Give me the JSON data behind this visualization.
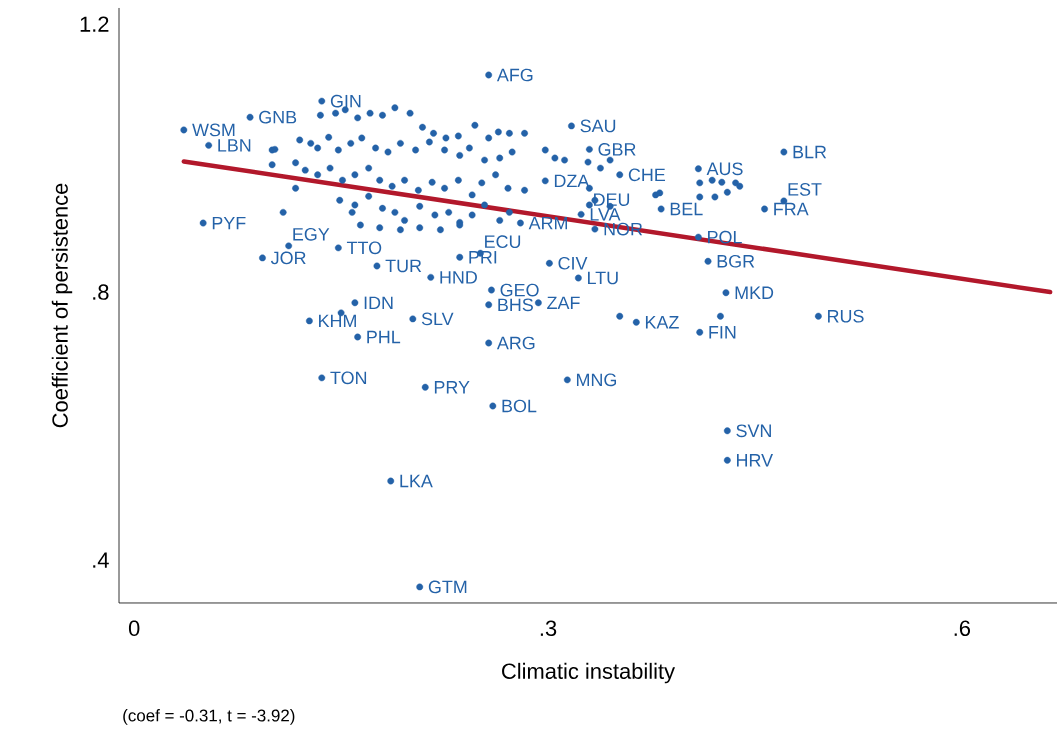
{
  "chart_data": {
    "type": "scatter",
    "xlabel": "Climatic instability",
    "ylabel": "Coefficient of persistence",
    "annotations": [
      "(coef = -0.31, t = -3.92)"
    ],
    "xlim": [
      -0.011,
      0.669
    ],
    "ylim": [
      0.336,
      1.224
    ],
    "xticks": [
      0,
      {
        "value": 0.3,
        "label": ".3"
      },
      {
        "value": 0.6,
        "label": ".6"
      }
    ],
    "yticks": [
      {
        "value": 0.4,
        "label": ".4"
      },
      {
        "value": 0.8,
        "label": ".8"
      },
      1.2
    ],
    "grid": false,
    "series": [
      {
        "type": "scatter",
        "color": "#2462a8",
        "marker": "circle",
        "x": [
          0.036,
          0.054,
          0.084,
          0.136,
          0.05,
          0.093,
          0.112,
          0.148,
          0.176,
          0.215,
          0.236,
          0.251,
          0.301,
          0.322,
          0.259,
          0.257,
          0.293,
          0.16,
          0.127,
          0.202,
          0.162,
          0.257,
          0.136,
          0.211,
          0.26,
          0.314,
          0.186,
          0.207,
          0.43,
          0.43,
          0.496,
          0.429,
          0.416,
          0.409,
          0.41,
          0.364,
          0.334,
          0.324,
          0.382,
          0.457,
          0.471,
          0.471,
          0.409,
          0.257,
          0.317,
          0.298,
          0.28,
          0.352,
          0.33,
          0.33,
          0.1,
          0.102,
          0.1,
          0.117,
          0.117,
          0.108,
          0.158,
          0.135,
          0.146,
          0.153,
          0.162,
          0.171,
          0.18,
          0.189,
          0.2,
          0.209,
          0.217,
          0.226,
          0.235,
          0.247,
          0.257,
          0.264,
          0.272,
          0.283,
          0.12,
          0.128,
          0.133,
          0.141,
          0.148,
          0.157,
          0.165,
          0.175,
          0.184,
          0.193,
          0.204,
          0.214,
          0.225,
          0.236,
          0.243,
          0.254,
          0.265,
          0.274,
          0.124,
          0.133,
          0.142,
          0.151,
          0.16,
          0.17,
          0.178,
          0.187,
          0.196,
          0.206,
          0.216,
          0.225,
          0.235,
          0.245,
          0.252,
          0.262,
          0.271,
          0.283,
          0.149,
          0.16,
          0.17,
          0.18,
          0.189,
          0.196,
          0.207,
          0.218,
          0.228,
          0.236,
          0.245,
          0.254,
          0.265,
          0.272,
          0.164,
          0.178,
          0.193,
          0.207,
          0.222,
          0.236,
          0.298,
          0.305,
          0.312,
          0.329,
          0.338,
          0.345,
          0.33,
          0.334,
          0.345,
          0.378,
          0.381,
          0.41,
          0.419,
          0.426,
          0.436,
          0.41,
          0.421,
          0.43,
          0.439,
          0.352,
          0.425,
          0.15
        ],
        "values": [
          1.042,
          1.019,
          1.061,
          1.085,
          0.903,
          0.851,
          0.869,
          0.866,
          0.839,
          0.822,
          0.852,
          0.858,
          0.843,
          0.821,
          0.803,
          0.781,
          0.784,
          0.784,
          0.757,
          0.76,
          0.733,
          0.724,
          0.672,
          0.658,
          0.63,
          0.669,
          0.518,
          0.36,
          0.593,
          0.549,
          0.764,
          0.799,
          0.846,
          0.882,
          0.74,
          0.755,
          0.894,
          0.916,
          0.924,
          0.924,
          0.936,
          1.009,
          0.984,
          1.124,
          1.048,
          0.966,
          0.903,
          0.975,
          1.013,
          0.955,
          1.012,
          1.013,
          0.99,
          0.993,
          0.955,
          0.919,
          0.919,
          1.064,
          1.067,
          1.072,
          1.06,
          1.067,
          1.064,
          1.075,
          1.067,
          1.046,
          1.037,
          1.03,
          1.033,
          1.049,
          1.03,
          1.039,
          1.037,
          1.037,
          1.027,
          1.022,
          1.015,
          1.031,
          1.012,
          1.022,
          1.03,
          1.015,
          1.009,
          1.022,
          1.012,
          1.024,
          1.012,
          1.004,
          1.015,
          0.997,
          1.0,
          1.009,
          0.982,
          0.975,
          0.985,
          0.967,
          0.975,
          0.985,
          0.967,
          0.958,
          0.967,
          0.952,
          0.964,
          0.955,
          0.967,
          0.945,
          0.963,
          0.975,
          0.955,
          0.952,
          0.937,
          0.93,
          0.943,
          0.925,
          0.919,
          0.907,
          0.928,
          0.915,
          0.919,
          0.904,
          0.915,
          0.93,
          0.907,
          0.919,
          0.9,
          0.896,
          0.893,
          0.896,
          0.893,
          0.9,
          1.012,
          1.0,
          0.997,
          0.994,
          0.985,
          0.997,
          0.93,
          0.937,
          0.928,
          0.945,
          0.948,
          0.963,
          0.967,
          0.964,
          0.963,
          0.942,
          0.942,
          0.949,
          0.958,
          0.764,
          0.764,
          0.769
        ],
        "value_labels": [
          "WSM",
          "LBN",
          "GNB",
          "GIN",
          "PYF",
          "JOR",
          "EGY",
          "TTO",
          "TUR",
          "HND",
          "PRI",
          "ECU",
          "CIV",
          "LTU",
          "GEO",
          "BHS",
          "ZAF",
          "IDN",
          "KHM",
          "SLV",
          "PHL",
          "ARG",
          "TON",
          "PRY",
          "BOL",
          "MNG",
          "LKA",
          "GTM",
          "SVN",
          "HRV",
          "RUS",
          "MKD",
          "BGR",
          "POL",
          "FIN",
          "KAZ",
          "NOR",
          "LVA",
          "BEL",
          "FRA",
          "EST",
          "BLR",
          "AUS",
          "AFG",
          "SAU",
          "DZA",
          "ARM",
          "CHE",
          "GBR",
          "DEU",
          null,
          null,
          null,
          null,
          null,
          null,
          null,
          null,
          null,
          null,
          null,
          null,
          null,
          null,
          null,
          null,
          null,
          null,
          null,
          null,
          null,
          null,
          null,
          null,
          null,
          null,
          null,
          null,
          null,
          null,
          null,
          null,
          null,
          null,
          null,
          null,
          null,
          null,
          null,
          null,
          null,
          null,
          null,
          null,
          null,
          null,
          null,
          null,
          null,
          null,
          null,
          null,
          null,
          null,
          null,
          null,
          null,
          null,
          null,
          null,
          null,
          null,
          null,
          null,
          null,
          null,
          null,
          null,
          null,
          null,
          null,
          null,
          null,
          null,
          null,
          null,
          null,
          null,
          null,
          null,
          null,
          null,
          null,
          null,
          null,
          null,
          null,
          null,
          null,
          null,
          null,
          null,
          null,
          null,
          null,
          null,
          null,
          null,
          null,
          null,
          null,
          null
        ]
      },
      {
        "type": "line",
        "color": "#b2182b",
        "line_style": "solid",
        "marker": "none",
        "x": [
          0.036,
          0.664
        ],
        "values": [
          0.995,
          0.8
        ]
      }
    ]
  }
}
